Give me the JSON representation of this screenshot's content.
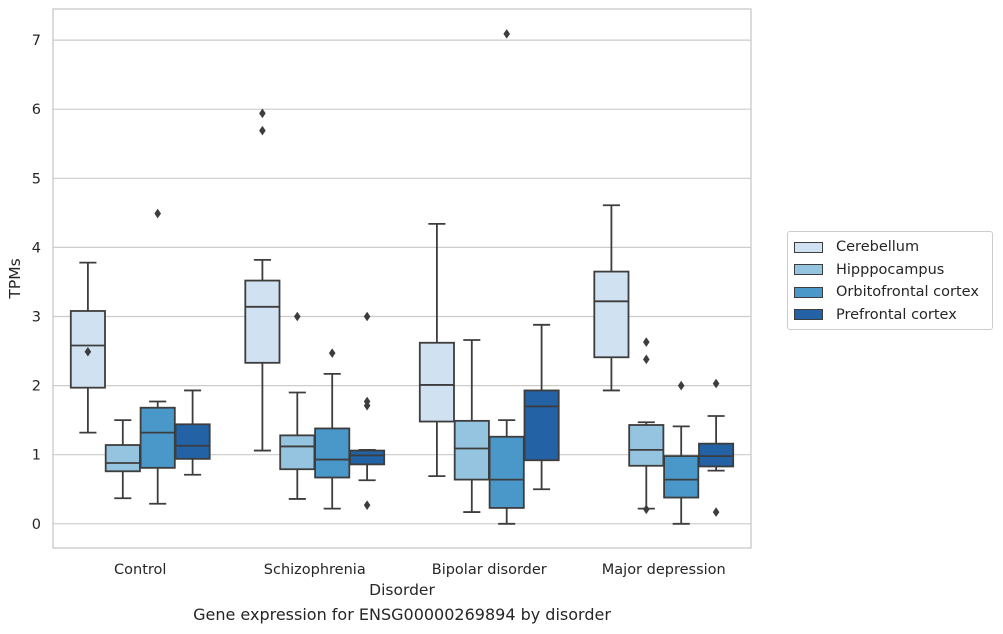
{
  "chart_data": {
    "type": "box",
    "caption": "Gene expression for ENSG00000269894 by disorder",
    "xlabel": "Disorder",
    "ylabel": "TPMs",
    "ylim": [
      -0.35,
      7.45
    ],
    "yticks": [
      "0",
      "1",
      "2",
      "3",
      "4",
      "5",
      "6",
      "7"
    ],
    "grid": true,
    "legend_position": "right",
    "categories": [
      "Control",
      "Schizophrenia",
      "Bipolar disorder",
      "Major depression"
    ],
    "series": [
      {
        "name": "Cerebellum",
        "color": "#d0e1f2",
        "boxes": [
          {
            "whisker_low": 1.32,
            "q1": 1.97,
            "median": 2.58,
            "q3": 3.08,
            "whisker_high": 3.78,
            "outliers": [
              2.49
            ]
          },
          {
            "whisker_low": 1.06,
            "q1": 2.33,
            "median": 3.14,
            "q3": 3.52,
            "whisker_high": 3.82,
            "outliers": [
              5.94,
              5.69
            ]
          },
          {
            "whisker_low": 0.69,
            "q1": 1.48,
            "median": 2.01,
            "q3": 2.62,
            "whisker_high": 4.34,
            "outliers": []
          },
          {
            "whisker_low": 1.93,
            "q1": 2.41,
            "median": 3.22,
            "q3": 3.65,
            "whisker_high": 4.61,
            "outliers": []
          }
        ]
      },
      {
        "name": "Hipppocampus",
        "color": "#94c4df",
        "boxes": [
          {
            "whisker_low": 0.37,
            "q1": 0.76,
            "median": 0.88,
            "q3": 1.14,
            "whisker_high": 1.5,
            "outliers": []
          },
          {
            "whisker_low": 0.36,
            "q1": 0.79,
            "median": 1.12,
            "q3": 1.28,
            "whisker_high": 1.9,
            "outliers": [
              3.0
            ]
          },
          {
            "whisker_low": 0.17,
            "q1": 0.64,
            "median": 1.09,
            "q3": 1.49,
            "whisker_high": 2.66,
            "outliers": []
          },
          {
            "whisker_low": 0.22,
            "q1": 0.84,
            "median": 1.07,
            "q3": 1.43,
            "whisker_high": 1.47,
            "outliers": [
              2.63,
              2.38,
              0.21
            ]
          }
        ]
      },
      {
        "name": "Orbitofrontal cortex",
        "color": "#4a98c9",
        "boxes": [
          {
            "whisker_low": 0.29,
            "q1": 0.81,
            "median": 1.32,
            "q3": 1.68,
            "whisker_high": 1.77,
            "outliers": [
              4.49
            ]
          },
          {
            "whisker_low": 0.22,
            "q1": 0.67,
            "median": 0.93,
            "q3": 1.38,
            "whisker_high": 2.17,
            "outliers": [
              2.47
            ]
          },
          {
            "whisker_low": 0.0,
            "q1": 0.23,
            "median": 0.64,
            "q3": 1.26,
            "whisker_high": 1.5,
            "outliers": [
              7.09
            ]
          },
          {
            "whisker_low": 0.0,
            "q1": 0.38,
            "median": 0.64,
            "q3": 0.98,
            "whisker_high": 1.41,
            "outliers": [
              2.0
            ]
          }
        ]
      },
      {
        "name": "Prefrontal cortex",
        "color": "#2262a5",
        "boxes": [
          {
            "whisker_low": 0.71,
            "q1": 0.94,
            "median": 1.13,
            "q3": 1.44,
            "whisker_high": 1.93,
            "outliers": []
          },
          {
            "whisker_low": 0.63,
            "q1": 0.86,
            "median": 0.99,
            "q3": 1.06,
            "whisker_high": 1.07,
            "outliers": [
              3.0,
              1.77,
              1.71,
              0.27
            ]
          },
          {
            "whisker_low": 0.5,
            "q1": 0.92,
            "median": 1.7,
            "q3": 1.93,
            "whisker_high": 2.88,
            "outliers": []
          },
          {
            "whisker_low": 0.77,
            "q1": 0.83,
            "median": 0.98,
            "q3": 1.16,
            "whisker_high": 1.56,
            "outliers": [
              2.03,
              0.17
            ]
          }
        ]
      }
    ]
  }
}
